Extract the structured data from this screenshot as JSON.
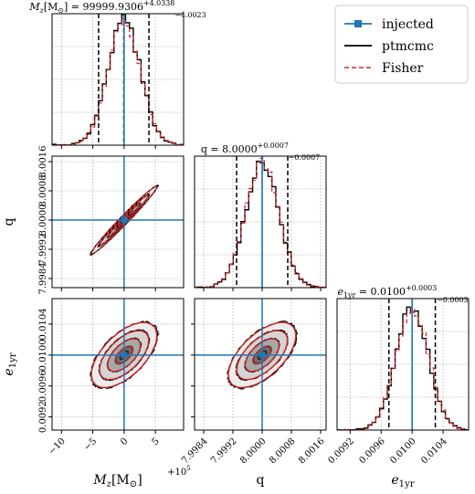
{
  "chart_data": {
    "type": "corner",
    "legend": {
      "placement": "top-right",
      "entries": [
        {
          "label": "injected",
          "style": "solid-square-marker",
          "color": "#1f77b4"
        },
        {
          "label": "ptmcmc",
          "style": "solid",
          "color": "#000000"
        },
        {
          "label": "Fisher",
          "style": "dashed",
          "color": "#d62728"
        }
      ]
    },
    "parameters": [
      {
        "key": "Mz",
        "axis_label": "M_z[M_⊙]",
        "title": "M_z[M_⊙] = 99999.9306 +4.0338 −4.0023",
        "median": 99999.9306,
        "err_plus": 4.0338,
        "err_minus": 4.0023,
        "injected": 100000.0,
        "range": [
          99988.5,
          100009.5
        ],
        "ticks": [
          99990,
          99995,
          100000,
          100005
        ],
        "tick_labels": [
          "−10",
          "−5",
          "0",
          "5"
        ],
        "offset_text": "+10^5",
        "sigma": 2.6
      },
      {
        "key": "q",
        "axis_label": "q",
        "title": "q = 8.0000 +0.0007 −0.0007",
        "median": 8.0,
        "err_plus": 0.0007,
        "err_minus": 0.0007,
        "injected": 8.0,
        "range": [
          7.99815,
          8.00175
        ],
        "ticks": [
          7.9984,
          7.9992,
          8.0,
          8.0008,
          8.0016
        ],
        "tick_labels": [
          "7.9984",
          "7.9992",
          "8.0000",
          "8.0008",
          "8.0016"
        ],
        "sigma": 0.00046
      },
      {
        "key": "e1yr",
        "axis_label": "e_1yr",
        "title": "e_1yr = 0.0100 +0.0003 −0.0003",
        "median": 0.01,
        "err_plus": 0.0003,
        "err_minus": 0.0003,
        "injected": 0.01,
        "range": [
          0.00903,
          0.01073
        ],
        "ticks": [
          0.0092,
          0.0096,
          0.01,
          0.0104
        ],
        "tick_labels": [
          "0.0092",
          "0.0096",
          "0.0100",
          "0.0104"
        ],
        "sigma": 0.00021
      }
    ],
    "correlations": {
      "q_Mz": 0.985,
      "e1yr_Mz": 0.6,
      "e1yr_q": 0.6
    },
    "colors": {
      "injected": "#1f77b4",
      "ptmcmc": "#000000",
      "fisher": "#d62728",
      "quantile": "#000000"
    },
    "grid": true
  }
}
